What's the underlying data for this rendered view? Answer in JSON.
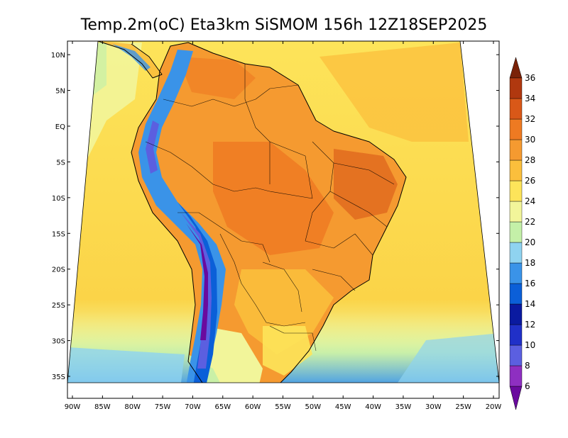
{
  "title": "Temp.2m(oC) Eta3km SiSMOM 156h 12Z18SEP2025",
  "map": {
    "lat_ticks": [
      "10N",
      "5N",
      "EQ",
      "5S",
      "10S",
      "15S",
      "20S",
      "25S",
      "30S",
      "35S"
    ],
    "lon_ticks": [
      "90W",
      "85W",
      "80W",
      "75W",
      "70W",
      "65W",
      "60W",
      "55W",
      "50W",
      "45W",
      "40W",
      "35W",
      "30W",
      "25W",
      "20W"
    ],
    "lat_values": [
      10,
      5,
      0,
      -5,
      -10,
      -15,
      -20,
      -25,
      -30,
      -35
    ],
    "lon_values": [
      -90,
      -85,
      -80,
      -75,
      -70,
      -65,
      -60,
      -55,
      -50,
      -45,
      -40,
      -35,
      -30,
      -25,
      -20
    ]
  },
  "colorbar": {
    "labels": [
      "6",
      "8",
      "10",
      "12",
      "14",
      "16",
      "18",
      "20",
      "22",
      "24",
      "26",
      "28",
      "30",
      "32",
      "34",
      "36"
    ],
    "colors": [
      "#6a0a9e",
      "#8e2fc1",
      "#5b5fe0",
      "#2030c8",
      "#0a1aa0",
      "#0b5fd8",
      "#3a93e8",
      "#8fd3f0",
      "#c4f0a8",
      "#f2f59a",
      "#fde45a",
      "#fbbf3c",
      "#f59a30",
      "#ee7a22",
      "#d95818",
      "#b0380f",
      "#7a2208"
    ]
  }
}
